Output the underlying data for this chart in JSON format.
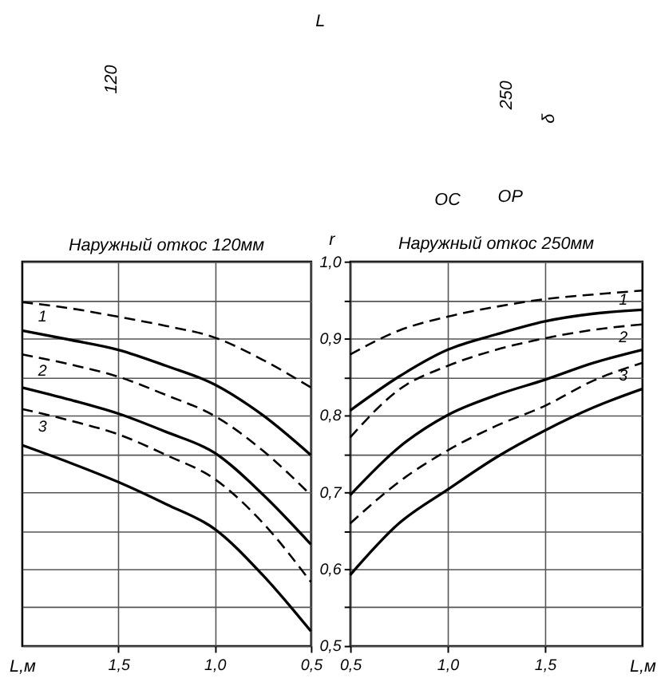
{
  "chart_data": [
    {
      "type": "line",
      "title": "Наружный откос 120мм",
      "xlabel": "L,м",
      "x": [
        2.0,
        1.75,
        1.5,
        1.25,
        1.0,
        0.75,
        0.5
      ],
      "series": [
        {
          "color": "#000000",
          "line_style": "dashed",
          "values": [
            0.947,
            0.939,
            0.928,
            0.916,
            0.901,
            0.872,
            0.836
          ]
        },
        {
          "name": "1",
          "color": "#000000",
          "line_style": "solid",
          "values": [
            0.91,
            0.898,
            0.885,
            0.864,
            0.84,
            0.8,
            0.748
          ]
        },
        {
          "color": "#000000",
          "line_style": "dashed",
          "values": [
            0.879,
            0.866,
            0.85,
            0.826,
            0.799,
            0.754,
            0.696
          ]
        },
        {
          "name": "2",
          "color": "#000000",
          "line_style": "solid",
          "values": [
            0.836,
            0.82,
            0.802,
            0.778,
            0.751,
            0.697,
            0.632
          ]
        },
        {
          "color": "#000000",
          "line_style": "dashed",
          "values": [
            0.808,
            0.793,
            0.775,
            0.748,
            0.717,
            0.66,
            0.583
          ]
        },
        {
          "name": "3",
          "color": "#000000",
          "line_style": "solid",
          "values": [
            0.761,
            0.738,
            0.713,
            0.684,
            0.652,
            0.592,
            0.519
          ]
        }
      ],
      "xlim": [
        2.0,
        0.5
      ],
      "xticks": [
        {
          "value": 1.5,
          "label": "1,5"
        },
        {
          "value": 1.0,
          "label": "1,0"
        },
        {
          "value": 0.5,
          "label": "0,5"
        }
      ],
      "ylim": [
        0.5,
        1.0
      ],
      "yticks": [
        {
          "value": 0.5,
          "label": null
        },
        {
          "value": 0.55,
          "label": null
        },
        {
          "value": 0.6,
          "label": null
        },
        {
          "value": 0.65,
          "label": null
        },
        {
          "value": 0.7,
          "label": null
        },
        {
          "value": 0.75,
          "label": null
        },
        {
          "value": 0.8,
          "label": null
        },
        {
          "value": 0.85,
          "label": null
        },
        {
          "value": 0.9,
          "label": null
        },
        {
          "value": 0.95,
          "label": null
        },
        {
          "value": 1.0,
          "label": null
        }
      ],
      "grid": true,
      "tick_labels": "x",
      "annotations": [
        "L",
        "120",
        "250",
        "δ",
        "ОС",
        "ОР"
      ]
    },
    {
      "type": "line",
      "title": "Наружный откос 250мм",
      "xlabel": "L,м",
      "ylabel": "r",
      "x": [
        0.5,
        0.75,
        1.0,
        1.25,
        1.5,
        1.75,
        2.0
      ],
      "series": [
        {
          "color": "#000000",
          "line_style": "dashed",
          "values": [
            0.879,
            0.91,
            0.928,
            0.941,
            0.951,
            0.957,
            0.962
          ]
        },
        {
          "name": "1",
          "color": "#000000",
          "line_style": "solid",
          "values": [
            0.806,
            0.85,
            0.885,
            0.905,
            0.922,
            0.932,
            0.937
          ]
        },
        {
          "color": "#000000",
          "line_style": "dashed",
          "values": [
            0.771,
            0.833,
            0.864,
            0.885,
            0.9,
            0.911,
            0.918
          ]
        },
        {
          "name": "2",
          "color": "#000000",
          "line_style": "solid",
          "values": [
            0.696,
            0.758,
            0.8,
            0.826,
            0.846,
            0.868,
            0.885
          ]
        },
        {
          "color": "#000000",
          "line_style": "dashed",
          "values": [
            0.659,
            0.713,
            0.754,
            0.786,
            0.812,
            0.845,
            0.868
          ]
        },
        {
          "name": "3",
          "color": "#000000",
          "line_style": "solid",
          "values": [
            0.592,
            0.659,
            0.703,
            0.745,
            0.78,
            0.81,
            0.834
          ]
        }
      ],
      "xlim": [
        0.5,
        2.0
      ],
      "xticks": [
        {
          "value": 0.5,
          "label": "0,5"
        },
        {
          "value": 1.0,
          "label": "1,0"
        },
        {
          "value": 1.5,
          "label": "1,5"
        }
      ],
      "ylim": [
        0.5,
        1.0
      ],
      "yticks": [
        {
          "value": 0.5,
          "label": "0,5"
        },
        {
          "value": 0.55,
          "label": null
        },
        {
          "value": 0.6,
          "label": "0,6"
        },
        {
          "value": 0.65,
          "label": null
        },
        {
          "value": 0.7,
          "label": "0,7"
        },
        {
          "value": 0.75,
          "label": null
        },
        {
          "value": 0.8,
          "label": "0,8"
        },
        {
          "value": 0.85,
          "label": null
        },
        {
          "value": 0.9,
          "label": "0,9"
        },
        {
          "value": 0.95,
          "label": null
        },
        {
          "value": 1.0,
          "label": "1,0"
        }
      ],
      "grid": true
    }
  ]
}
